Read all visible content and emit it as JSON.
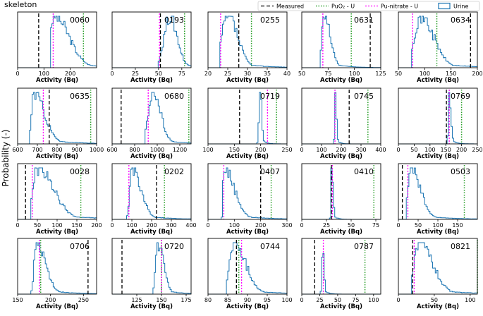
{
  "figure": {
    "title": "skeleton",
    "ylabel": "Probability (-)"
  },
  "legend": [
    {
      "name": "Measured",
      "color": "#000000",
      "dash": "5,3"
    },
    {
      "name": "PuO₂ - U",
      "color": "#2ca02c",
      "dash": "1.5,2"
    },
    {
      "name": "Pu-nitrate - U",
      "color": "#ff00ff",
      "dash": "2,2"
    },
    {
      "name": "Urine",
      "color": "#1f77b4",
      "dash": ""
    }
  ],
  "colors": {
    "measured": "#000000",
    "puo2": "#2ca02c",
    "nitrate": "#ff00ff",
    "urine": "#1f77b4"
  },
  "chart_data": [
    {
      "type": "area",
      "title": "0060",
      "xlabel": "Activity (Bq)",
      "xlim": [
        0,
        300
      ],
      "xticks": [
        0,
        100,
        200
      ],
      "tick_labels": [
        "0",
        "100",
        "200"
      ],
      "measured": 80,
      "puo2": 250,
      "nitrate": 135,
      "urine": {
        "peak": 140,
        "left": 20,
        "right": 55,
        "start": 128
      }
    },
    {
      "type": "area",
      "title": "0193",
      "xlabel": "Activity (Bq)",
      "xlim": [
        0,
        85
      ],
      "xticks": [
        0,
        25,
        50,
        75
      ],
      "tick_labels": [
        "0",
        "25",
        "50",
        "75"
      ],
      "measured": 52,
      "puo2": 78,
      "nitrate": 51,
      "urine": {
        "peak": 62,
        "left": 6,
        "right": 8,
        "start": 51
      }
    },
    {
      "type": "area",
      "title": "0255",
      "xlabel": "Activity (Bq)",
      "xlim": [
        20,
        40
      ],
      "xticks": [
        20,
        25,
        30,
        35,
        40
      ],
      "tick_labels": [
        "20",
        "25",
        "30",
        "35",
        "40"
      ],
      "measured": 27.8,
      "puo2": 31,
      "nitrate": 23.2,
      "urine": {
        "peak": 25,
        "left": 1.5,
        "right": 2.5,
        "start": 23.3
      }
    },
    {
      "type": "area",
      "title": "0631",
      "xlabel": "Activity (Bq)",
      "xlim": [
        50,
        125
      ],
      "xticks": [
        50,
        75,
        100,
        125
      ],
      "tick_labels": [
        "50",
        "75",
        "100",
        "125"
      ],
      "measured": 115,
      "puo2": 97,
      "nitrate": 70,
      "urine": {
        "peak": 71,
        "left": 2,
        "right": 6,
        "start": 69
      }
    },
    {
      "type": "area",
      "title": "0634",
      "xlabel": "Activity (Bq)",
      "xlim": [
        50,
        200
      ],
      "xticks": [
        50,
        100,
        150,
        200
      ],
      "tick_labels": [
        "50",
        "100",
        "150",
        "200"
      ],
      "measured": 187,
      "puo2": 123,
      "nitrate": 77,
      "urine": {
        "peak": 92,
        "left": 12,
        "right": 25,
        "start": 78
      }
    },
    {
      "type": "area",
      "title": "0635",
      "xlabel": "Activity (Bq)",
      "xlim": [
        600,
        1000
      ],
      "xticks": [
        600,
        700,
        800,
        900,
        1000
      ],
      "tick_labels": [
        "600",
        "700",
        "800",
        "900",
        "1000"
      ],
      "measured": 760,
      "puo2": 970,
      "nitrate": 730,
      "urine": {
        "peak": 680,
        "left": 10,
        "right": 55,
        "start": 668
      }
    },
    {
      "type": "area",
      "title": "0680",
      "xlabel": "Activity (Bq)",
      "xlim": [
        600,
        1300
      ],
      "xticks": [
        600,
        800,
        1000,
        1200
      ],
      "tick_labels": [
        "600",
        "800",
        "1000",
        "1200"
      ],
      "measured": 680,
      "puo2": 1280,
      "nitrate": 920,
      "urine": {
        "peak": 960,
        "left": 40,
        "right": 70,
        "start": 905
      }
    },
    {
      "type": "area",
      "title": "0719",
      "xlabel": "Activity (Bq)",
      "xlim": [
        100,
        250
      ],
      "xticks": [
        100,
        150,
        200,
        250
      ],
      "tick_labels": [
        "100",
        "150",
        "200",
        "250"
      ],
      "measured": 160,
      "puo2": 230,
      "nitrate": 213,
      "urine": {
        "peak": 199,
        "left": 2,
        "right": 3,
        "start": 196
      }
    },
    {
      "type": "area",
      "title": "0745",
      "xlabel": "Activity (Bq)",
      "xlim": [
        0,
        400
      ],
      "xticks": [
        0,
        100,
        200,
        300,
        400
      ],
      "tick_labels": [
        "0",
        "100",
        "200",
        "300",
        "400"
      ],
      "measured": 240,
      "puo2": 335,
      "nitrate": 168,
      "urine": {
        "peak": 170,
        "left": 3,
        "right": 6,
        "start": 165
      }
    },
    {
      "type": "area",
      "title": "0769",
      "xlabel": "Activity (Bq)",
      "xlim": [
        0,
        250
      ],
      "xticks": [
        0,
        50,
        100,
        150,
        200,
        250
      ],
      "tick_labels": [
        "0",
        "50",
        "100",
        "150",
        "200",
        "250"
      ],
      "measured": 152,
      "puo2": 200,
      "nitrate": 161,
      "urine": {
        "peak": 160,
        "left": 2,
        "right": 6,
        "start": 156
      }
    },
    {
      "type": "area",
      "title": "0028",
      "xlabel": "Activity (Bq)",
      "xlim": [
        0,
        200
      ],
      "xticks": [
        0,
        50,
        100,
        150,
        200
      ],
      "tick_labels": [
        "0",
        "50",
        "100",
        "150",
        "200"
      ],
      "measured": 20,
      "puo2": 160,
      "nitrate": 37,
      "urine": {
        "peak": 50,
        "left": 12,
        "right": 40,
        "start": 36
      }
    },
    {
      "type": "area",
      "title": "0202",
      "xlabel": "Activity (Bq)",
      "xlim": [
        0,
        400
      ],
      "xticks": [
        0,
        100,
        200,
        300,
        400
      ],
      "tick_labels": [
        "0",
        "100",
        "200",
        "300",
        "400"
      ],
      "measured": 225,
      "puo2": 265,
      "nitrate": 85,
      "urine": {
        "peak": 100,
        "left": 10,
        "right": 45,
        "start": 82
      }
    },
    {
      "type": "area",
      "title": "0407",
      "xlabel": "Activity (Bq)",
      "xlim": [
        0,
        300
      ],
      "xticks": [
        0,
        100,
        200,
        300
      ],
      "tick_labels": [
        "0",
        "100",
        "200",
        "300"
      ],
      "measured": 200,
      "puo2": 240,
      "nitrate": 60,
      "urine": {
        "peak": 60,
        "left": 3,
        "right": 40,
        "start": 55
      }
    },
    {
      "type": "area",
      "title": "0410",
      "xlabel": "Activity (Bq)",
      "xlim": [
        0,
        80
      ],
      "xticks": [
        0,
        25,
        50,
        75
      ],
      "tick_labels": [
        "0",
        "25",
        "50",
        "75"
      ],
      "measured": 30,
      "puo2": 73,
      "nitrate": 31,
      "urine": {
        "peak": 30,
        "left": 0.5,
        "right": 1.5,
        "start": 29
      }
    },
    {
      "type": "area",
      "title": "0503",
      "xlabel": "Activity (Bq)",
      "xlim": [
        0,
        200
      ],
      "xticks": [
        0,
        50,
        100,
        150
      ],
      "tick_labels": [
        "0",
        "50",
        "100",
        "150"
      ],
      "measured": 10,
      "puo2": 167,
      "nitrate": 24,
      "urine": {
        "peak": 30,
        "left": 6,
        "right": 25,
        "start": 22
      }
    },
    {
      "type": "area",
      "title": "0706",
      "xlabel": "Activity (Bq)",
      "xlim": [
        150,
        270
      ],
      "xticks": [
        150,
        200,
        250
      ],
      "tick_labels": [
        "150",
        "200",
        "250"
      ],
      "measured": 257,
      "puo2": 185,
      "nitrate": 183,
      "urine": {
        "peak": 178,
        "left": 3,
        "right": 14,
        "start": 173
      }
    },
    {
      "type": "area",
      "title": "0720",
      "xlabel": "Activity (Bq)",
      "xlim": [
        100,
        180
      ],
      "xticks": [
        125,
        150,
        175
      ],
      "tick_labels": [
        "125",
        "150",
        "175"
      ],
      "measured": 110,
      "puo2": 150,
      "nitrate": 150,
      "urine": {
        "peak": 146,
        "left": 2,
        "right": 6,
        "start": 143
      }
    },
    {
      "type": "area",
      "title": "0744",
      "xlabel": "Activity (Bq)",
      "xlim": [
        80,
        100
      ],
      "xticks": [
        80,
        85,
        90,
        95,
        100
      ],
      "tick_labels": [
        "80",
        "85",
        "90",
        "95",
        "100"
      ],
      "measured": 87.2,
      "puo2": 87.8,
      "nitrate": 88.5,
      "urine": {
        "peak": 86.5,
        "left": 1,
        "right": 3,
        "start": 85
      }
    },
    {
      "type": "area",
      "title": "0787",
      "xlabel": "Activity (Bq)",
      "xlim": [
        0,
        110
      ],
      "xticks": [
        0,
        25,
        50,
        75,
        100
      ],
      "tick_labels": [
        "0",
        "25",
        "50",
        "75",
        "100"
      ],
      "measured": 18,
      "puo2": 88,
      "nitrate": 30,
      "urine": {
        "peak": 29,
        "left": 1,
        "right": 2,
        "start": 28
      }
    },
    {
      "type": "area",
      "title": "0821",
      "xlabel": "Activity (Bq)",
      "xlim": [
        0,
        110
      ],
      "xticks": [
        0,
        50,
        100
      ],
      "tick_labels": [
        "0",
        "50",
        "100"
      ],
      "measured": 20,
      "puo2": 110,
      "nitrate": 22,
      "urine": {
        "peak": 30,
        "left": 8,
        "right": 18,
        "start": 20
      }
    }
  ]
}
